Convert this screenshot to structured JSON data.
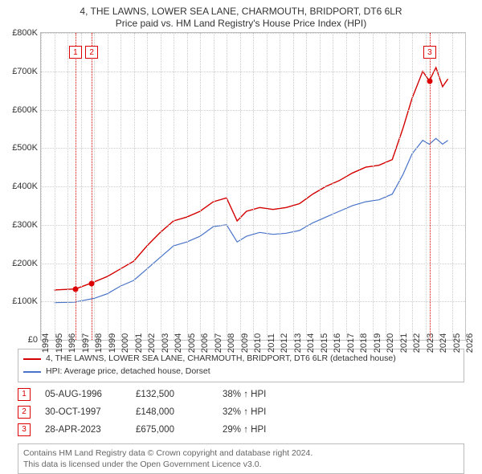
{
  "title_line1": "4, THE LAWNS, LOWER SEA LANE, CHARMOUTH, BRIDPORT, DT6 6LR",
  "title_line2": "Price paid vs. HM Land Registry's House Price Index (HPI)",
  "chart": {
    "type": "line",
    "x_min": 1994,
    "x_max": 2026,
    "y_min": 0,
    "y_max": 800000,
    "y_ticks": [
      0,
      100000,
      200000,
      300000,
      400000,
      500000,
      600000,
      700000,
      800000
    ],
    "y_tick_labels": [
      "£0",
      "£100K",
      "£200K",
      "£300K",
      "£400K",
      "£500K",
      "£600K",
      "£700K",
      "£800K"
    ],
    "x_ticks": [
      1994,
      1995,
      1996,
      1997,
      1998,
      1999,
      2000,
      2001,
      2002,
      2003,
      2004,
      2005,
      2006,
      2007,
      2008,
      2009,
      2010,
      2011,
      2012,
      2013,
      2014,
      2015,
      2016,
      2017,
      2018,
      2019,
      2020,
      2021,
      2022,
      2023,
      2024,
      2025,
      2026
    ],
    "grid_color": "#cccccc",
    "series": [
      {
        "name": "property",
        "label": "4, THE LAWNS, LOWER SEA LANE, CHARMOUTH, BRIDPORT, DT6 6LR (detached house)",
        "color": "#d40000",
        "width": 1.4,
        "points": [
          [
            1995.0,
            130000
          ],
          [
            1996.6,
            132500
          ],
          [
            1997.8,
            148000
          ],
          [
            1999.0,
            165000
          ],
          [
            2000.0,
            185000
          ],
          [
            2001.0,
            205000
          ],
          [
            2002.0,
            245000
          ],
          [
            2003.0,
            280000
          ],
          [
            2004.0,
            310000
          ],
          [
            2005.0,
            320000
          ],
          [
            2006.0,
            335000
          ],
          [
            2007.0,
            360000
          ],
          [
            2008.0,
            370000
          ],
          [
            2008.8,
            310000
          ],
          [
            2009.5,
            335000
          ],
          [
            2010.5,
            345000
          ],
          [
            2011.5,
            340000
          ],
          [
            2012.5,
            345000
          ],
          [
            2013.5,
            355000
          ],
          [
            2014.5,
            380000
          ],
          [
            2015.5,
            400000
          ],
          [
            2016.5,
            415000
          ],
          [
            2017.5,
            435000
          ],
          [
            2018.5,
            450000
          ],
          [
            2019.5,
            455000
          ],
          [
            2020.5,
            470000
          ],
          [
            2021.3,
            550000
          ],
          [
            2022.0,
            630000
          ],
          [
            2022.8,
            700000
          ],
          [
            2023.3,
            675000
          ],
          [
            2023.8,
            710000
          ],
          [
            2024.3,
            660000
          ],
          [
            2024.7,
            680000
          ]
        ]
      },
      {
        "name": "hpi",
        "label": "HPI: Average price, detached house, Dorset",
        "color": "#4a74c9",
        "width": 1.2,
        "points": [
          [
            1995.0,
            97000
          ],
          [
            1996.5,
            98000
          ],
          [
            1998.0,
            108000
          ],
          [
            1999.0,
            120000
          ],
          [
            2000.0,
            140000
          ],
          [
            2001.0,
            155000
          ],
          [
            2002.0,
            185000
          ],
          [
            2003.0,
            215000
          ],
          [
            2004.0,
            245000
          ],
          [
            2005.0,
            255000
          ],
          [
            2006.0,
            270000
          ],
          [
            2007.0,
            295000
          ],
          [
            2008.0,
            300000
          ],
          [
            2008.8,
            255000
          ],
          [
            2009.5,
            270000
          ],
          [
            2010.5,
            280000
          ],
          [
            2011.5,
            275000
          ],
          [
            2012.5,
            278000
          ],
          [
            2013.5,
            285000
          ],
          [
            2014.5,
            305000
          ],
          [
            2015.5,
            320000
          ],
          [
            2016.5,
            335000
          ],
          [
            2017.5,
            350000
          ],
          [
            2018.5,
            360000
          ],
          [
            2019.5,
            365000
          ],
          [
            2020.5,
            380000
          ],
          [
            2021.3,
            430000
          ],
          [
            2022.0,
            485000
          ],
          [
            2022.8,
            520000
          ],
          [
            2023.3,
            510000
          ],
          [
            2023.8,
            525000
          ],
          [
            2024.3,
            510000
          ],
          [
            2024.7,
            520000
          ]
        ]
      }
    ],
    "markers": [
      {
        "n": "1",
        "x": 1996.6,
        "y": 132500,
        "box_y": 750000
      },
      {
        "n": "2",
        "x": 1997.83,
        "y": 148000,
        "box_y": 750000
      },
      {
        "n": "3",
        "x": 2023.33,
        "y": 675000,
        "box_y": 750000
      }
    ]
  },
  "legend": {
    "items": [
      {
        "color": "#d40000",
        "text": "4, THE LAWNS, LOWER SEA LANE, CHARMOUTH, BRIDPORT, DT6 6LR (detached house)"
      },
      {
        "color": "#4a74c9",
        "text": "HPI: Average price, detached house, Dorset"
      }
    ]
  },
  "events": [
    {
      "n": "1",
      "date": "05-AUG-1996",
      "price": "£132,500",
      "delta": "38% ↑ HPI"
    },
    {
      "n": "2",
      "date": "30-OCT-1997",
      "price": "£148,000",
      "delta": "32% ↑ HPI"
    },
    {
      "n": "3",
      "date": "28-APR-2023",
      "price": "£675,000",
      "delta": "29% ↑ HPI"
    }
  ],
  "footer_line1": "Contains HM Land Registry data © Crown copyright and database right 2024.",
  "footer_line2": "This data is licensed under the Open Government Licence v3.0."
}
